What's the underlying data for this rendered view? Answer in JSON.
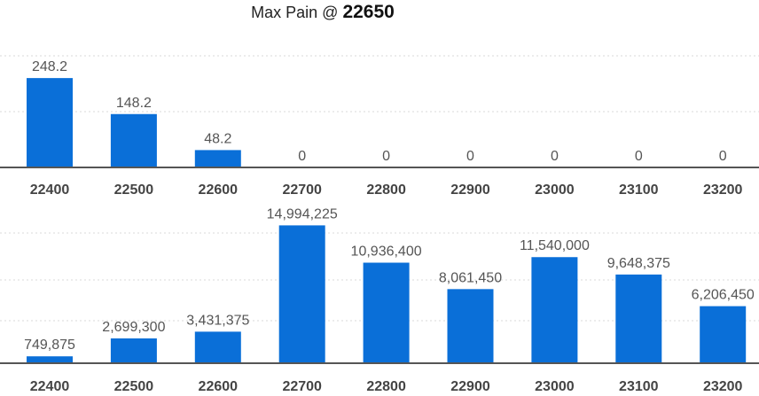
{
  "title": {
    "prefix": "Max Pain @ ",
    "value": "22650"
  },
  "colors": {
    "bar": "#0a6fd8",
    "axis": "#555555",
    "grid": "#d9d9d9"
  },
  "chart_data": [
    {
      "type": "bar",
      "categories": [
        "22400",
        "22500",
        "22600",
        "22700",
        "22800",
        "22900",
        "23000",
        "23100",
        "23200"
      ],
      "values": [
        248.2,
        148.2,
        48.2,
        0,
        0,
        0,
        0,
        0,
        0
      ],
      "labels": [
        "248.2",
        "148.2",
        "48.2",
        "0",
        "0",
        "0",
        "0",
        "0",
        "0"
      ],
      "ylim": [
        0,
        310
      ],
      "grid": true
    },
    {
      "type": "bar",
      "categories": [
        "22400",
        "22500",
        "22600",
        "22700",
        "22800",
        "22900",
        "23000",
        "23100",
        "23200"
      ],
      "values": [
        749875,
        2699300,
        3431375,
        14994225,
        10936400,
        8061450,
        11540000,
        9648375,
        6206450
      ],
      "labels": [
        "749,875",
        "2,699,300",
        "3,431,375",
        "14,994,225",
        "10,936,400",
        "8,061,450",
        "11,540,000",
        "9,648,375",
        "6,206,450"
      ],
      "ylim": [
        0,
        15900000
      ],
      "grid": true
    }
  ]
}
